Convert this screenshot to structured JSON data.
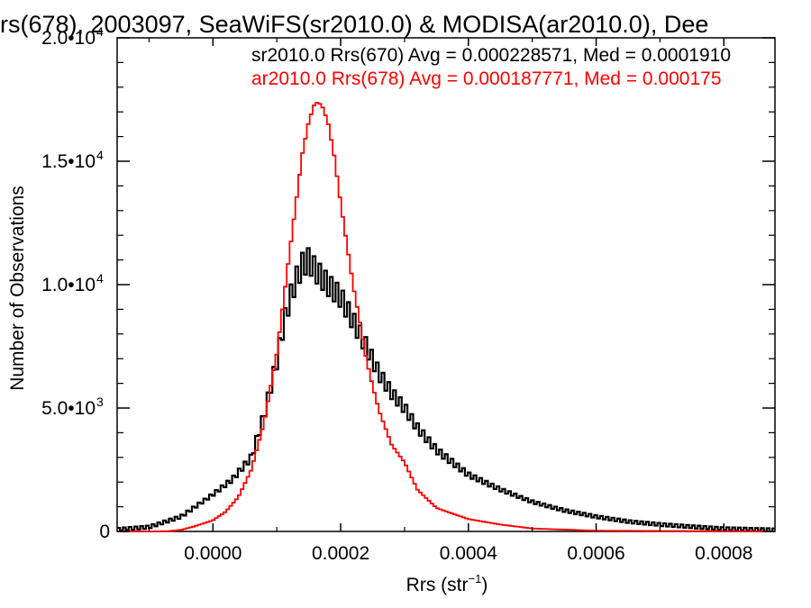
{
  "chart_data": {
    "type": "line",
    "title": "rs(678), 2003097, SeaWiFS(sr2010.0) & MODISA(ar2010.0), Dee",
    "xlabel": "Rrs (str",
    "xlabel_sup": "−1",
    "xlabel_tail": ")",
    "ylabel": "Number of Observations",
    "xlim": [
      -0.00015,
      0.00088
    ],
    "ylim": [
      0,
      20000
    ],
    "grid": false,
    "x_ticks": [
      {
        "value": 0.0,
        "label": "0.0000"
      },
      {
        "value": 0.0002,
        "label": "0.0002"
      },
      {
        "value": 0.0004,
        "label": "0.0004"
      },
      {
        "value": 0.0006,
        "label": "0.0006"
      },
      {
        "value": 0.0008,
        "label": "0.0008"
      }
    ],
    "y_ticks": [
      {
        "value": 0,
        "base": "0",
        "exp": ""
      },
      {
        "value": 5000,
        "base": "5.0•10",
        "exp": "3"
      },
      {
        "value": 10000,
        "base": "1.0•10",
        "exp": "4"
      },
      {
        "value": 15000,
        "base": "1.5•10",
        "exp": "4"
      },
      {
        "value": 20000,
        "base": "2.0•10",
        "exp": "4"
      }
    ],
    "series": [
      {
        "name": "sr2010.0 Rrs(670) Avg = 0.000228571, Med = 0.0001910",
        "color": "#000000",
        "x": [
          -0.00015,
          -0.0001,
          -5e-05,
          0.0,
          3e-05,
          6e-05,
          8e-05,
          0.0001,
          0.00011,
          0.00012,
          0.00013,
          0.00014,
          0.00015,
          0.00016,
          0.00017,
          0.00018,
          0.0002,
          0.00022,
          0.00024,
          0.00026,
          0.00028,
          0.0003,
          0.00032,
          0.00035,
          0.0004,
          0.00045,
          0.0005,
          0.00055,
          0.0006,
          0.00065,
          0.0007,
          0.00075,
          0.0008,
          0.00088
        ],
        "y": [
          80,
          180,
          600,
          1500,
          2100,
          3000,
          4700,
          6900,
          8300,
          9400,
          10200,
          10800,
          11000,
          10600,
          10300,
          10000,
          9500,
          8500,
          7500,
          6400,
          5600,
          5000,
          4200,
          3300,
          2300,
          1700,
          1200,
          850,
          600,
          400,
          280,
          190,
          110,
          60
        ]
      },
      {
        "name": "ar2010.0 Rrs(678) Avg = 0.000187771, Med = 0.000175",
        "color": "#ff0000",
        "x": [
          -0.00015,
          -0.0001,
          -7e-05,
          -5e-05,
          -3e-05,
          0.0,
          2e-05,
          4e-05,
          6e-05,
          8e-05,
          0.0001,
          0.00012,
          0.00013,
          0.00014,
          0.00015,
          0.00016,
          0.00017,
          0.00018,
          0.00019,
          0.0002,
          0.00021,
          0.00022,
          0.00023,
          0.00024,
          0.00025,
          0.00026,
          0.00028,
          0.0003,
          0.00032,
          0.00035,
          0.0004,
          0.00045,
          0.0005,
          0.0006,
          0.00088
        ],
        "y": [
          0,
          0,
          10,
          60,
          200,
          450,
          800,
          1400,
          2500,
          4400,
          7200,
          11300,
          13300,
          15300,
          16600,
          17400,
          17300,
          16600,
          15200,
          13300,
          11600,
          9900,
          8500,
          7000,
          5900,
          4900,
          3500,
          2800,
          1700,
          950,
          500,
          280,
          120,
          30,
          0
        ]
      }
    ]
  }
}
